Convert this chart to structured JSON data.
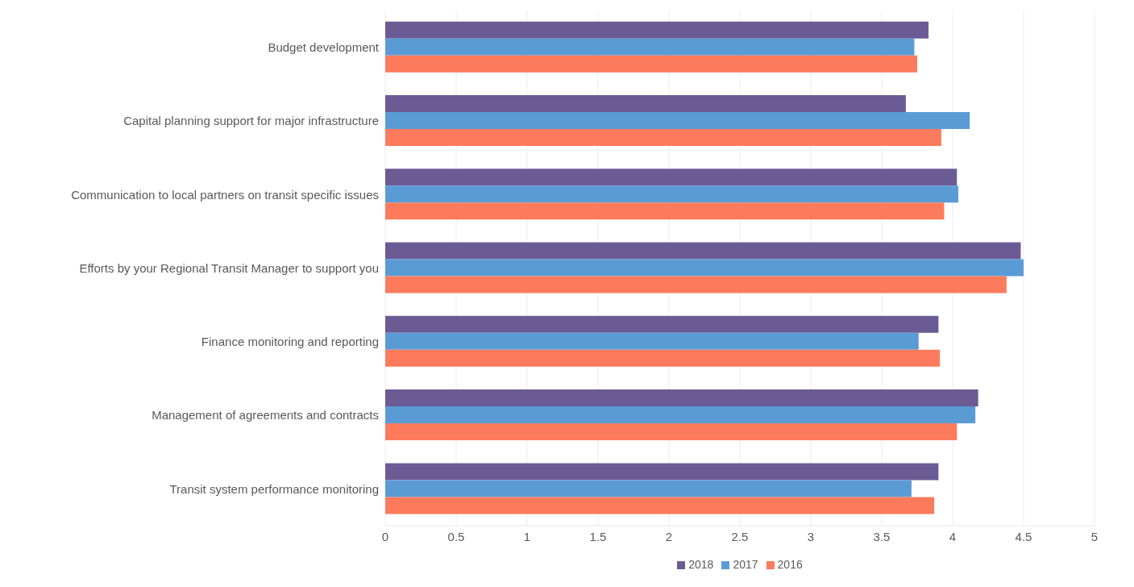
{
  "chart_data": {
    "type": "bar",
    "orientation": "horizontal",
    "categories": [
      "Budget development",
      "Capital planning support for major infrastructure",
      "Communication to local partners on transit specific issues",
      "Efforts by your Regional Transit Manager to support you",
      "Finance monitoring and reporting",
      "Management of agreements and contracts",
      "Transit system performance monitoring"
    ],
    "series": [
      {
        "name": "2018",
        "color": "#6b5b95",
        "values": [
          3.83,
          3.67,
          4.03,
          4.48,
          3.9,
          4.18,
          3.9
        ]
      },
      {
        "name": "2017",
        "color": "#5b9bd5",
        "values": [
          3.73,
          4.12,
          4.04,
          4.5,
          3.76,
          4.16,
          3.71
        ]
      },
      {
        "name": "2016",
        "color": "#fc7b5c",
        "values": [
          3.75,
          3.92,
          3.94,
          4.38,
          3.91,
          4.03,
          3.87
        ]
      }
    ],
    "xlim": [
      0,
      5
    ],
    "xticks": [
      0,
      0.5,
      1,
      1.5,
      2,
      2.5,
      3,
      3.5,
      4,
      4.5,
      5
    ],
    "grid": "x",
    "legend": "bottom"
  }
}
